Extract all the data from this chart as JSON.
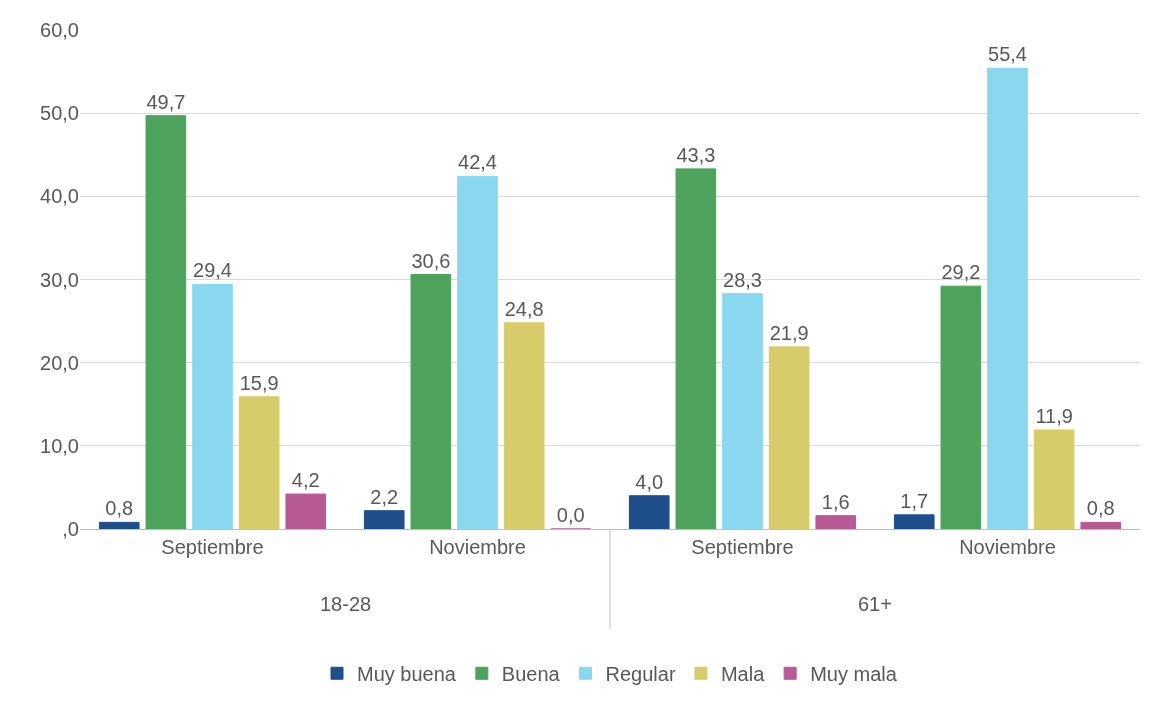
{
  "chart_data": {
    "type": "bar",
    "categories": [
      "Septiembre",
      "Noviembre",
      "Septiembre",
      "Noviembre"
    ],
    "series": [
      {
        "name": "Muy buena",
        "color": "#1f4e8c",
        "values": [
          0.8,
          2.2,
          4.0,
          1.7
        ],
        "value_labels": [
          "0,8",
          "2,2",
          "4,0",
          "1,7"
        ]
      },
      {
        "name": "Buena",
        "color": "#4ea35c",
        "values": [
          49.7,
          30.6,
          43.3,
          29.2
        ],
        "value_labels": [
          "49,7",
          "30,6",
          "43,3",
          "29,2"
        ]
      },
      {
        "name": "Regular",
        "color": "#8ad8f0",
        "values": [
          29.4,
          42.4,
          28.3,
          55.4
        ],
        "value_labels": [
          "29,4",
          "42,4",
          "28,3",
          "55,4"
        ]
      },
      {
        "name": "Mala",
        "color": "#d6cc6a",
        "values": [
          15.9,
          24.8,
          21.9,
          11.9
        ],
        "value_labels": [
          "15,9",
          "24,8",
          "21,9",
          "11,9"
        ]
      },
      {
        "name": "Muy mala",
        "color": "#b85a93",
        "values": [
          4.2,
          0.0,
          1.6,
          0.8
        ],
        "value_labels": [
          "4,2",
          "0,0",
          "1,6",
          "0,8"
        ]
      }
    ],
    "ylim": [
      0,
      60
    ],
    "yticks": [
      {
        "value": 0,
        "label": ",0"
      },
      {
        "value": 10,
        "label": "10,0"
      },
      {
        "value": 20,
        "label": "20,0"
      },
      {
        "value": 30,
        "label": "30,0"
      },
      {
        "value": 40,
        "label": "40,0"
      },
      {
        "value": 50,
        "label": "50,0"
      },
      {
        "value": 60,
        "label": "60,0"
      }
    ],
    "annotations": [
      "18-28",
      "61+"
    ],
    "grid": "y",
    "legend": "bottom"
  }
}
